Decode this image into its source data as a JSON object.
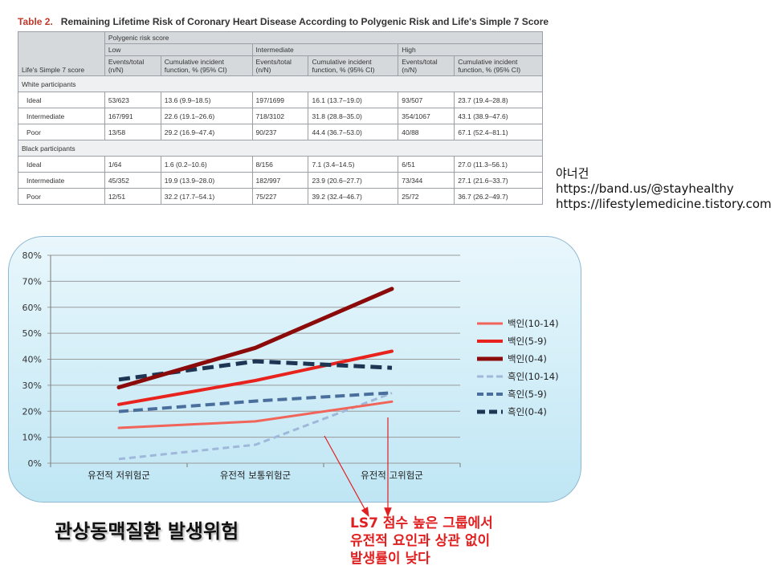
{
  "table": {
    "title_num": "Table 2.",
    "title": "Remaining Lifetime Risk of Coronary Heart Disease According to Polygenic Risk and Life's Simple 7 Score",
    "header_top": "Polygenic risk score",
    "row_header": "Life's Simple 7 score",
    "groups": [
      "Low",
      "Intermediate",
      "High"
    ],
    "sub_events": "Events/total (n/N)",
    "sub_cif": "Cumulative incident function, % (95% CI)",
    "sections": [
      {
        "label": "White participants",
        "rows": [
          {
            "label": "Ideal",
            "cells": [
              "53/623",
              "13.6 (9.9–18.5)",
              "197/1699",
              "16.1 (13.7–19.0)",
              "93/507",
              "23.7 (19.4–28.8)"
            ]
          },
          {
            "label": "Intermediate",
            "cells": [
              "167/991",
              "22.6 (19.1–26.6)",
              "718/3102",
              "31.8 (28.8–35.0)",
              "354/1067",
              "43.1 (38.9–47.6)"
            ]
          },
          {
            "label": "Poor",
            "cells": [
              "13/58",
              "29.2 (16.9–47.4)",
              "90/237",
              "44.4 (36.7–53.0)",
              "40/88",
              "67.1 (52.4–81.1)"
            ]
          }
        ]
      },
      {
        "label": "Black participants",
        "rows": [
          {
            "label": "Ideal",
            "cells": [
              "1/64",
              "1.6 (0.2–10.6)",
              "8/156",
              "7.1 (3.4–14.5)",
              "6/51",
              "27.0 (11.3–56.1)"
            ]
          },
          {
            "label": "Intermediate",
            "cells": [
              "45/352",
              "19.9 (13.9–28.0)",
              "182/997",
              "23.9 (20.6–27.7)",
              "73/344",
              "27.1 (21.6–33.7)"
            ]
          },
          {
            "label": "Poor",
            "cells": [
              "12/51",
              "32.2 (17.7–54.1)",
              "75/227",
              "39.2 (32.4–46.7)",
              "25/72",
              "36.7 (26.2–49.7)"
            ]
          }
        ]
      }
    ]
  },
  "credit": {
    "author": "야너건",
    "link1": "https://band.us/@stayhealthy",
    "link2": "https://lifestylemedicine.tistory.com"
  },
  "chart_data": {
    "type": "line",
    "categories": [
      "유전적 저위험군",
      "유전적 보통위험군",
      "유전적 고위험군"
    ],
    "yticks": [
      "0%",
      "10%",
      "20%",
      "30%",
      "40%",
      "50%",
      "60%",
      "70%",
      "80%"
    ],
    "ylim": [
      0,
      80
    ],
    "grid": true,
    "legend_position": "right",
    "series": [
      {
        "name": "백인(10-14)",
        "values": [
          13.6,
          16.1,
          23.7
        ],
        "color": "#f0645a",
        "dash": "solid",
        "width": 3
      },
      {
        "name": "백인(5-9)",
        "values": [
          22.6,
          31.8,
          43.1
        ],
        "color": "#e8231e",
        "dash": "solid",
        "width": 4
      },
      {
        "name": "백인(0-4)",
        "values": [
          29.2,
          44.4,
          67.1
        ],
        "color": "#8b0a0a",
        "dash": "solid",
        "width": 5
      },
      {
        "name": "흑인(10-14)",
        "values": [
          1.6,
          7.1,
          27.0
        ],
        "color": "#9fb8da",
        "dash": "dashed",
        "width": 3
      },
      {
        "name": "흑인(5-9)",
        "values": [
          19.9,
          23.9,
          27.1
        ],
        "color": "#4a6f9c",
        "dash": "dashed",
        "width": 4
      },
      {
        "name": "흑인(0-4)",
        "values": [
          32.2,
          39.2,
          36.7
        ],
        "color": "#1c3654",
        "dash": "dashed",
        "width": 5
      }
    ]
  },
  "caption": "관상동맥질환 발생위험",
  "note_lines": [
    "LS7 점수 높은 그룹에서",
    "유전적 요인과 상관 없이",
    "발생률이 낮다"
  ],
  "note_color": "#e02020"
}
